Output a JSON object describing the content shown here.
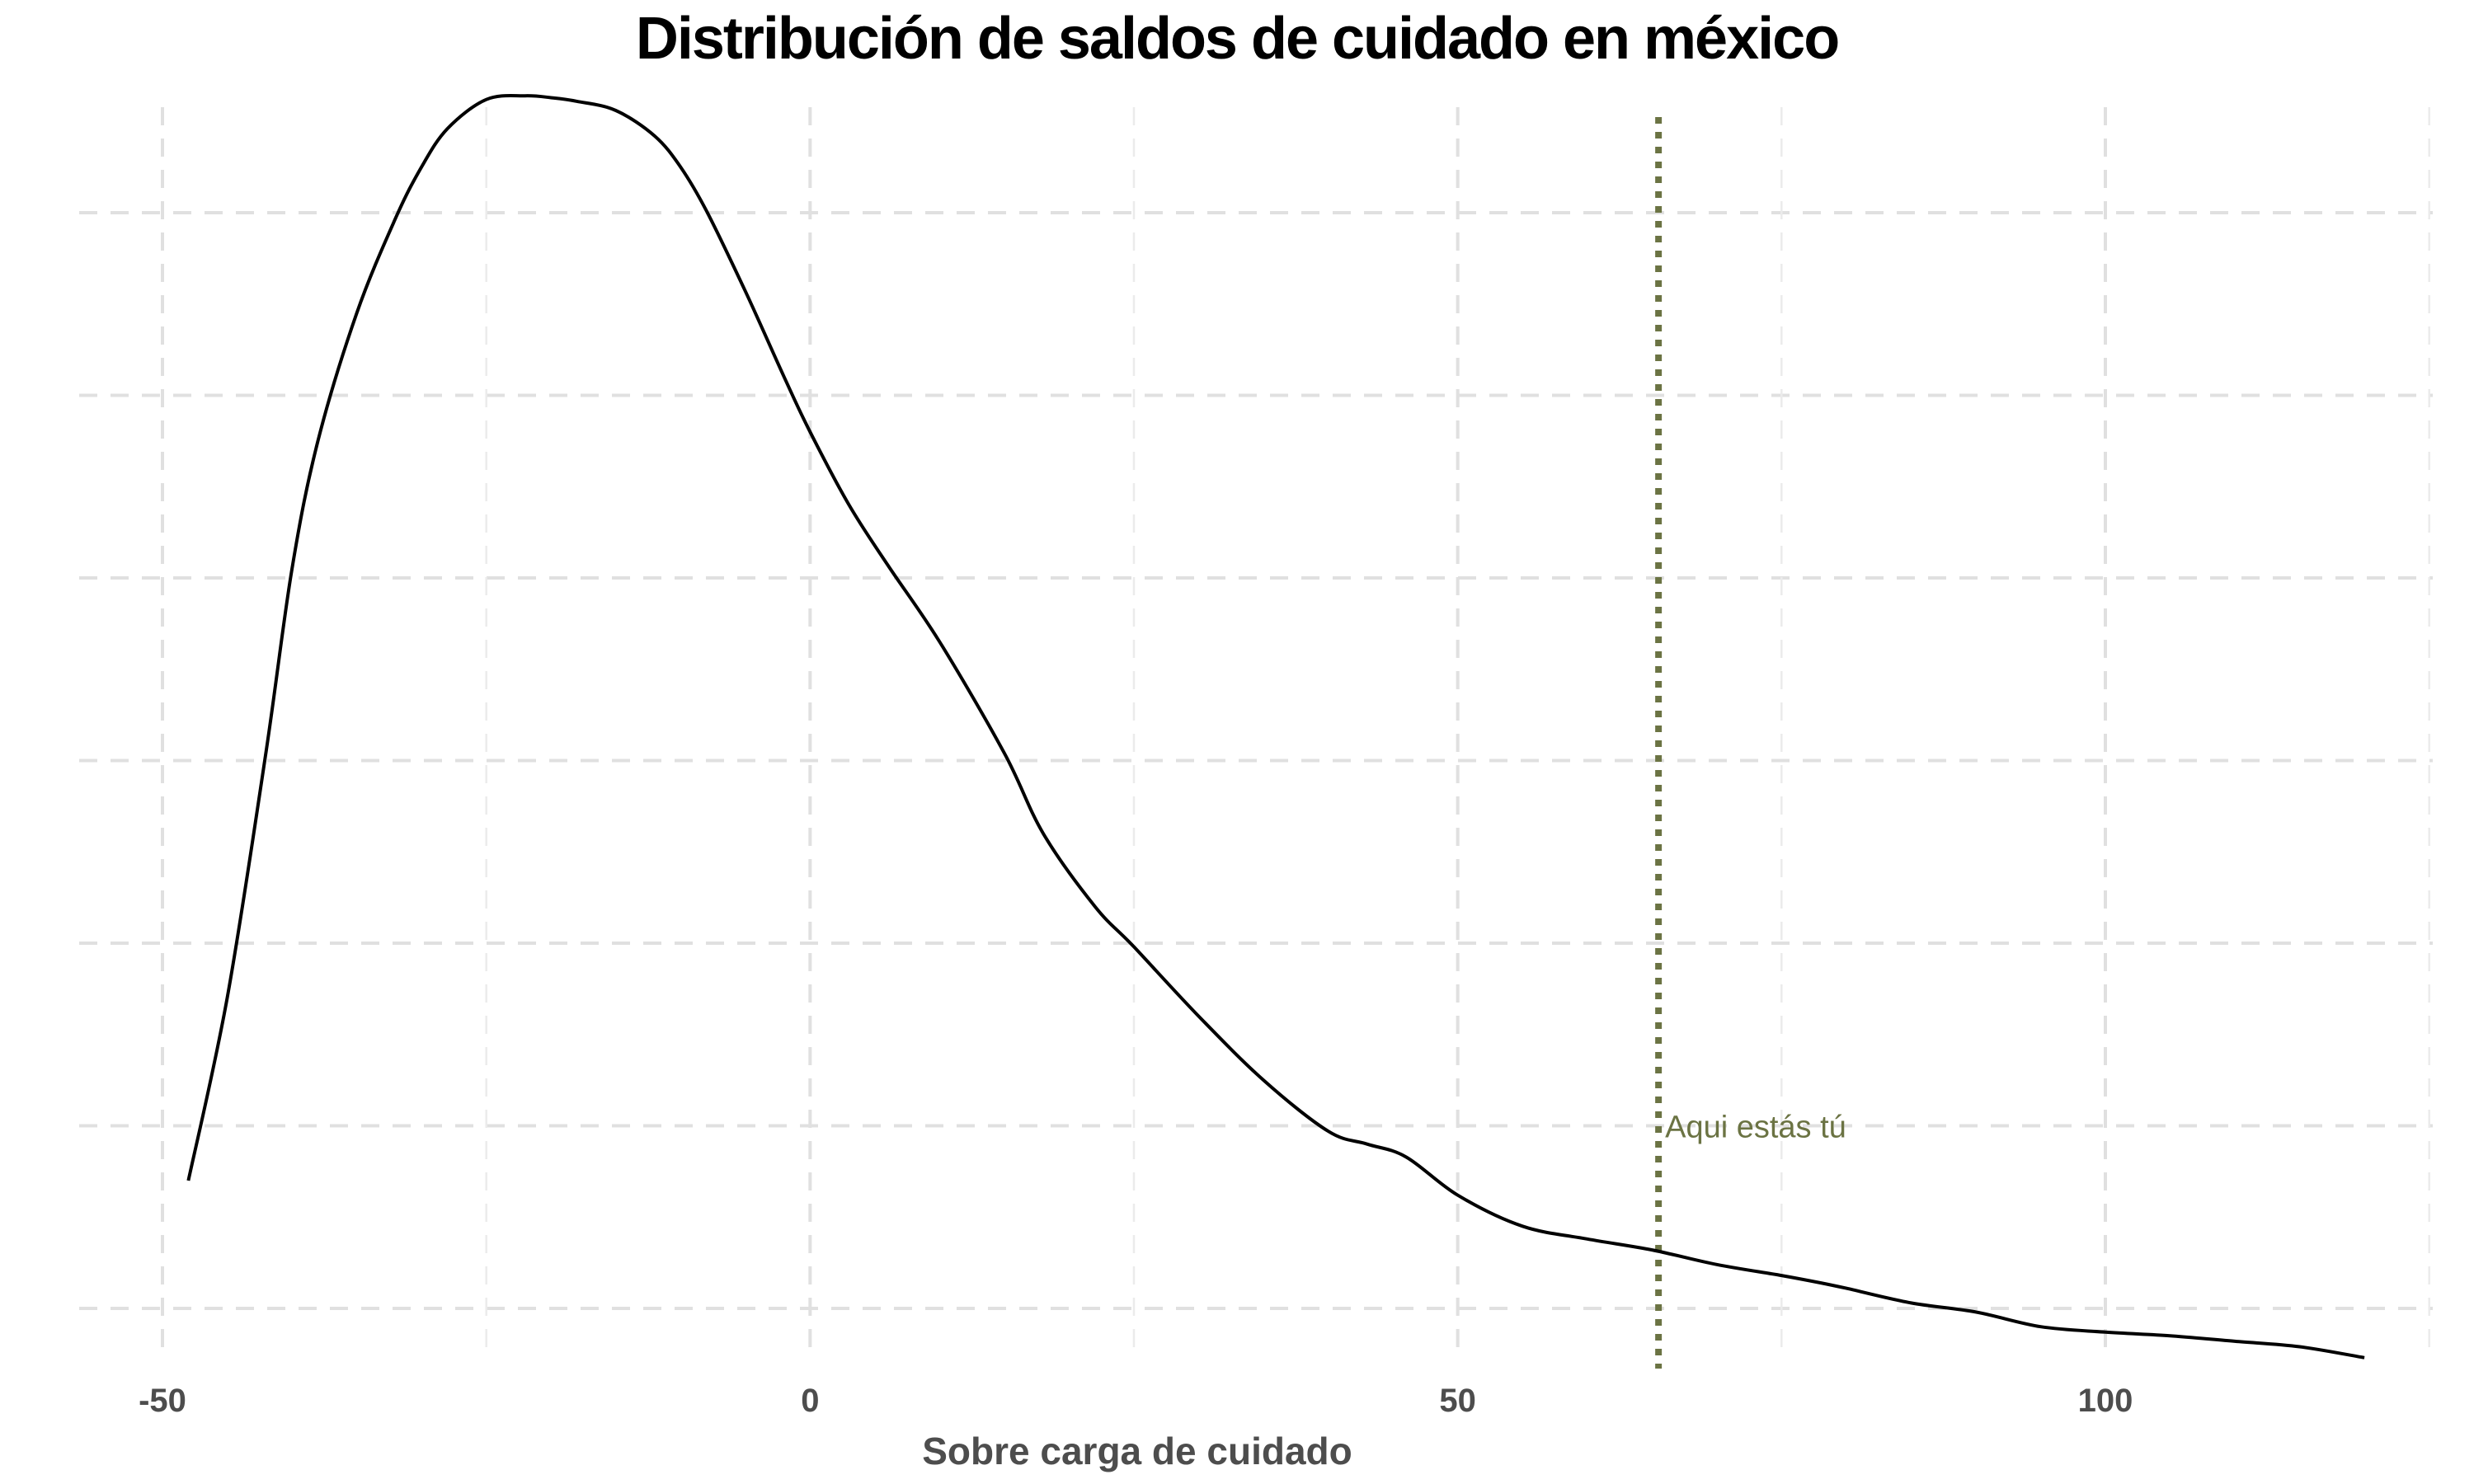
{
  "chart_data": {
    "type": "area",
    "title": "Distribución de saldos de cuidado en méxico",
    "xlabel": "Sobre carga de cuidado",
    "ylabel": "",
    "xlim": [
      -51,
      127
    ],
    "ylim": [
      -0.4,
      6.7
    ],
    "x_ticks": [
      -50,
      0,
      50,
      100
    ],
    "x_tick_labels": [
      "-50",
      "0",
      "50",
      "100"
    ],
    "x_minor_ticks": [
      -25,
      25,
      75,
      125
    ],
    "y_gridlines": [
      0,
      1,
      2,
      3,
      4,
      5,
      6
    ],
    "y_tick_labels_shown": false,
    "grid": true,
    "grid_style": "dashed",
    "line_color": "#000000",
    "density_curve": {
      "x": [
        -48,
        -45,
        -42,
        -40,
        -38,
        -35,
        -32,
        -30,
        -28,
        -25,
        -22,
        -20,
        -18,
        -15,
        -12,
        -10,
        -8,
        -5,
        -2,
        0,
        3,
        6,
        10,
        15,
        18,
        22,
        25,
        30,
        35,
        40,
        43,
        46,
        50,
        55,
        60,
        65,
        70,
        75,
        78,
        80,
        85,
        90,
        95,
        100,
        105,
        110,
        115,
        120
      ],
      "y": [
        0.7,
        1.7,
        3.05,
        4.05,
        4.75,
        5.45,
        5.97,
        6.25,
        6.46,
        6.62,
        6.64,
        6.63,
        6.61,
        6.56,
        6.42,
        6.25,
        6.01,
        5.57,
        5.1,
        4.8,
        4.4,
        4.07,
        3.65,
        3.04,
        2.6,
        2.2,
        1.98,
        1.6,
        1.25,
        0.97,
        0.9,
        0.83,
        0.62,
        0.45,
        0.38,
        0.32,
        0.24,
        0.18,
        0.14,
        0.11,
        0.03,
        -0.02,
        -0.1,
        -0.13,
        -0.15,
        -0.18,
        -0.21,
        -0.27
      ]
    },
    "reference_line": {
      "x": 65.5,
      "color": "#6b7343",
      "style": "dotted",
      "label": "Aqui estás tú",
      "label_y": 1.0
    }
  }
}
